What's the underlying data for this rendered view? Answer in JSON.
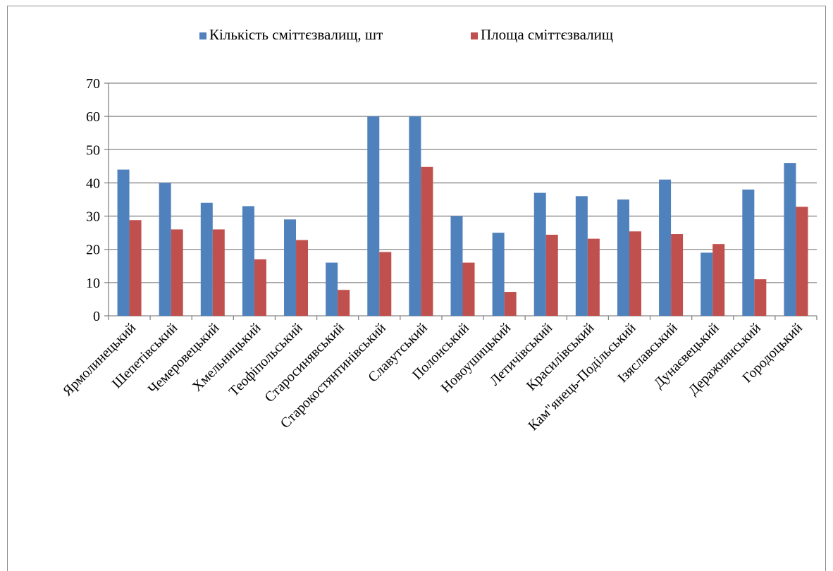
{
  "chart_data": {
    "type": "bar",
    "categories": [
      "Ярмолинецький",
      "Шепетівський",
      "Чемеровецький",
      "Хмельницький",
      "Теофіпольський",
      "Старосинявський",
      "Старокостянтинівський",
      "Славутський",
      "Полонський",
      "Новоушицький",
      "Летичівський",
      "Красилівський",
      "Кам\"янець-Подільський",
      "Ізяславський",
      "Дунаєвецький",
      "Деражнянський",
      "Городоцький"
    ],
    "series": [
      {
        "name": "Кількість сміттєзвалищ, шт",
        "color": "#4f81bd",
        "values": [
          44,
          40,
          34,
          33,
          29,
          16,
          60,
          60,
          30,
          25,
          37,
          36,
          35,
          41,
          19,
          38,
          46
        ]
      },
      {
        "name": "Площа сміттєзвалищ",
        "color": "#c0504d",
        "values": [
          28.8,
          26,
          26,
          17,
          22.8,
          7.8,
          19.2,
          44.8,
          16,
          7.2,
          24.4,
          23.2,
          25.4,
          24.6,
          21.6,
          11,
          32.8
        ]
      }
    ],
    "ylim": [
      0,
      70
    ],
    "yticks": [
      0,
      10,
      20,
      30,
      40,
      50,
      60,
      70
    ],
    "ytick_labels": [
      "0",
      "10",
      "20",
      "30",
      "40",
      "50",
      "60",
      "70"
    ],
    "grid": true,
    "legend_position": "top",
    "xlabel": "",
    "ylabel": "",
    "title": ""
  }
}
